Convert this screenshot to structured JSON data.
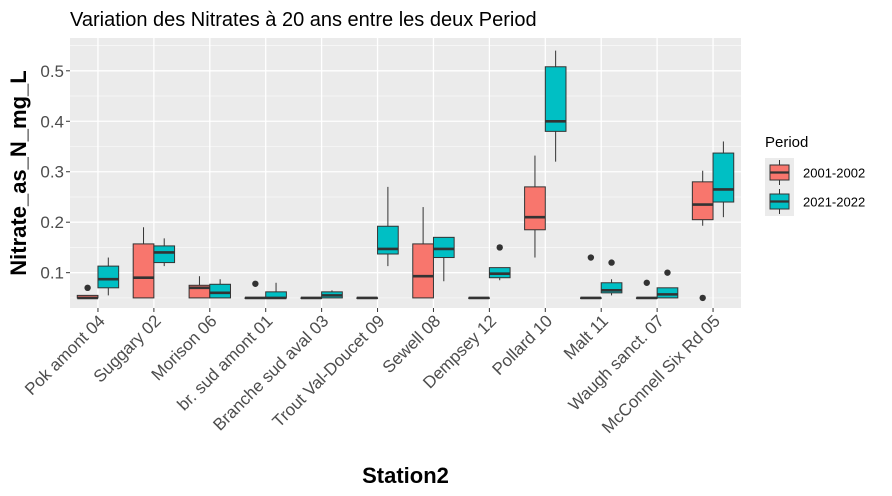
{
  "chart_data": {
    "type": "boxplot",
    "title": "Variation  des Nitrates à 20 ans entre les deux Period",
    "xlabel": "Station2",
    "ylabel": "Nitrate_as_N_mg_L",
    "ylim": [
      0.03,
      0.565
    ],
    "yticks": [
      0.1,
      0.2,
      0.3,
      0.4,
      0.5
    ],
    "ytick_labels": [
      "0.1",
      "0.2",
      "0.3",
      "0.4",
      "0.5"
    ],
    "grid": true,
    "legend": {
      "title": "Period",
      "position": "right"
    },
    "categories": [
      "Pok amont 04",
      "Suggary 02",
      "Morison 06",
      "br. sud amont 01",
      "Branche sud aval 03",
      "Trout Val-Doucet 09",
      "Sewell 08",
      "Dempsey 12",
      "Pollard 10",
      "Malt 11",
      "Waugh sanct. 07",
      "McConnell Six Rd 05"
    ],
    "series": [
      {
        "name": "2001-2002",
        "color": "#F8766D",
        "boxes": [
          {
            "min": 0.05,
            "q1": 0.05,
            "median": 0.05,
            "q3": 0.055,
            "max": 0.055,
            "outliers": [
              0.07
            ]
          },
          {
            "min": 0.05,
            "q1": 0.05,
            "median": 0.09,
            "q3": 0.157,
            "max": 0.19,
            "outliers": []
          },
          {
            "min": 0.05,
            "q1": 0.05,
            "median": 0.07,
            "q3": 0.075,
            "max": 0.093,
            "outliers": []
          },
          {
            "min": 0.05,
            "q1": 0.05,
            "median": 0.05,
            "q3": 0.05,
            "max": 0.05,
            "outliers": [
              0.078
            ]
          },
          {
            "min": 0.05,
            "q1": 0.05,
            "median": 0.05,
            "q3": 0.05,
            "max": 0.05,
            "outliers": []
          },
          {
            "min": 0.05,
            "q1": 0.05,
            "median": 0.05,
            "q3": 0.05,
            "max": 0.05,
            "outliers": []
          },
          {
            "min": 0.05,
            "q1": 0.05,
            "median": 0.093,
            "q3": 0.157,
            "max": 0.23,
            "outliers": []
          },
          {
            "min": 0.05,
            "q1": 0.05,
            "median": 0.05,
            "q3": 0.05,
            "max": 0.05,
            "outliers": []
          },
          {
            "min": 0.13,
            "q1": 0.185,
            "median": 0.21,
            "q3": 0.27,
            "max": 0.332,
            "outliers": []
          },
          {
            "min": 0.05,
            "q1": 0.05,
            "median": 0.05,
            "q3": 0.05,
            "max": 0.05,
            "outliers": [
              0.13
            ]
          },
          {
            "min": 0.05,
            "q1": 0.05,
            "median": 0.05,
            "q3": 0.05,
            "max": 0.05,
            "outliers": [
              0.08
            ]
          },
          {
            "min": 0.193,
            "q1": 0.205,
            "median": 0.235,
            "q3": 0.28,
            "max": 0.302,
            "outliers": []
          }
        ]
      },
      {
        "name": "2021-2022",
        "color": "#00BFC4",
        "boxes": [
          {
            "min": 0.055,
            "q1": 0.07,
            "median": 0.087,
            "q3": 0.113,
            "max": 0.13,
            "outliers": []
          },
          {
            "min": 0.113,
            "q1": 0.12,
            "median": 0.14,
            "q3": 0.153,
            "max": 0.168,
            "outliers": []
          },
          {
            "min": 0.05,
            "q1": 0.05,
            "median": 0.06,
            "q3": 0.077,
            "max": 0.087,
            "outliers": []
          },
          {
            "min": 0.05,
            "q1": 0.05,
            "median": 0.05,
            "q3": 0.062,
            "max": 0.08,
            "outliers": []
          },
          {
            "min": 0.05,
            "q1": 0.05,
            "median": 0.055,
            "q3": 0.062,
            "max": 0.065,
            "outliers": []
          },
          {
            "min": 0.113,
            "q1": 0.137,
            "median": 0.147,
            "q3": 0.192,
            "max": 0.27,
            "outliers": []
          },
          {
            "min": 0.083,
            "q1": 0.13,
            "median": 0.147,
            "q3": 0.17,
            "max": 0.17,
            "outliers": []
          },
          {
            "min": 0.085,
            "q1": 0.09,
            "median": 0.098,
            "q3": 0.11,
            "max": 0.11,
            "outliers": [
              0.15
            ]
          },
          {
            "min": 0.32,
            "q1": 0.38,
            "median": 0.4,
            "q3": 0.508,
            "max": 0.54,
            "outliers": []
          },
          {
            "min": 0.055,
            "q1": 0.06,
            "median": 0.065,
            "q3": 0.08,
            "max": 0.087,
            "outliers": [
              0.12
            ]
          },
          {
            "min": 0.05,
            "q1": 0.05,
            "median": 0.057,
            "q3": 0.07,
            "max": 0.07,
            "outliers": [
              0.1
            ]
          },
          {
            "min": 0.21,
            "q1": 0.24,
            "median": 0.265,
            "q3": 0.337,
            "max": 0.36,
            "outliers": []
          }
        ],
        "extra_points": [
          {
            "category_index": 11,
            "series_index": 0,
            "y": 0.05
          }
        ]
      }
    ]
  }
}
